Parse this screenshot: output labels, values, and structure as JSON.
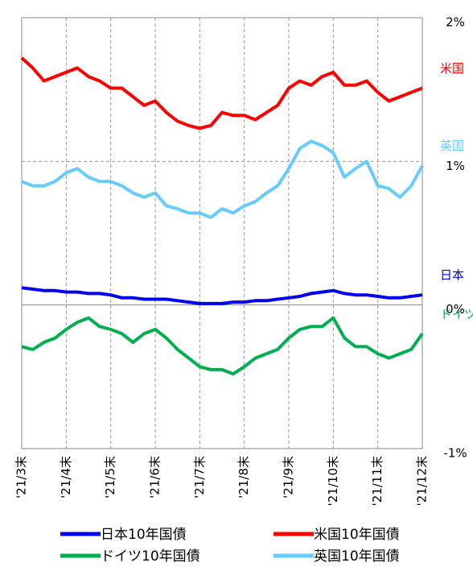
{
  "chart_data": {
    "type": "line",
    "xlim": [
      0,
      9
    ],
    "xticks": [
      {
        "value": 0,
        "label": "'21/3末"
      },
      {
        "value": 1,
        "label": "'21/4末"
      },
      {
        "value": 2,
        "label": "'21/5末"
      },
      {
        "value": 3,
        "label": "'21/6末"
      },
      {
        "value": 4,
        "label": "'21/7末"
      },
      {
        "value": 5,
        "label": "'21/8末"
      },
      {
        "value": 6,
        "label": "'21/9末"
      },
      {
        "value": 7,
        "label": "'21/10末"
      },
      {
        "value": 8,
        "label": "'21/11末"
      },
      {
        "value": 9,
        "label": "'21/12末"
      }
    ],
    "ylim": [
      -1,
      2
    ],
    "yticks": [
      {
        "value": -1,
        "label": "-1%"
      },
      {
        "value": 0,
        "label": "0%"
      },
      {
        "value": 1,
        "label": "1%"
      },
      {
        "value": 2,
        "label": "2%"
      }
    ],
    "grid": true,
    "x": [
      0,
      0.25,
      0.5,
      0.75,
      1,
      1.25,
      1.5,
      1.75,
      2,
      2.25,
      2.5,
      2.75,
      3,
      3.25,
      3.5,
      3.75,
      4,
      4.25,
      4.5,
      4.75,
      5,
      5.25,
      5.5,
      5.75,
      6,
      6.25,
      6.5,
      6.75,
      7,
      7.25,
      7.5,
      7.75,
      8,
      8.25,
      8.5,
      8.75,
      9
    ],
    "series": [
      {
        "name": "日本10年国債",
        "end_label": "日本",
        "color": "#0000ee",
        "values": [
          0.12,
          0.11,
          0.1,
          0.1,
          0.09,
          0.09,
          0.08,
          0.08,
          0.07,
          0.05,
          0.05,
          0.04,
          0.04,
          0.04,
          0.03,
          0.02,
          0.01,
          0.01,
          0.01,
          0.02,
          0.02,
          0.03,
          0.03,
          0.04,
          0.05,
          0.06,
          0.08,
          0.09,
          0.1,
          0.08,
          0.07,
          0.07,
          0.06,
          0.05,
          0.05,
          0.06,
          0.07
        ]
      },
      {
        "name": "米国10年国債",
        "end_label": "米国",
        "color": "#ff0000",
        "values": [
          1.72,
          1.65,
          1.56,
          1.59,
          1.62,
          1.65,
          1.59,
          1.56,
          1.51,
          1.51,
          1.45,
          1.39,
          1.42,
          1.34,
          1.28,
          1.25,
          1.23,
          1.25,
          1.34,
          1.32,
          1.32,
          1.29,
          1.34,
          1.39,
          1.51,
          1.56,
          1.53,
          1.59,
          1.62,
          1.53,
          1.53,
          1.56,
          1.48,
          1.42,
          1.45,
          1.48,
          1.51
        ]
      },
      {
        "name": "ドイツ10年国債",
        "end_label": "ドイツ",
        "color": "#00b050",
        "values": [
          -0.29,
          -0.31,
          -0.26,
          -0.23,
          -0.17,
          -0.12,
          -0.09,
          -0.15,
          -0.17,
          -0.2,
          -0.26,
          -0.2,
          -0.17,
          -0.23,
          -0.31,
          -0.37,
          -0.43,
          -0.45,
          -0.45,
          -0.48,
          -0.43,
          -0.37,
          -0.34,
          -0.31,
          -0.23,
          -0.17,
          -0.15,
          -0.15,
          -0.09,
          -0.23,
          -0.29,
          -0.29,
          -0.34,
          -0.37,
          -0.34,
          -0.31,
          -0.2
        ]
      },
      {
        "name": "英国10年国債",
        "end_label": "英国",
        "color": "#66ccff",
        "values": [
          0.86,
          0.83,
          0.83,
          0.86,
          0.92,
          0.95,
          0.89,
          0.86,
          0.86,
          0.83,
          0.78,
          0.75,
          0.78,
          0.69,
          0.67,
          0.64,
          0.64,
          0.61,
          0.67,
          0.64,
          0.69,
          0.72,
          0.78,
          0.83,
          0.95,
          1.09,
          1.14,
          1.11,
          1.06,
          0.89,
          0.95,
          1.0,
          0.83,
          0.81,
          0.75,
          0.83,
          0.97
        ]
      }
    ]
  }
}
